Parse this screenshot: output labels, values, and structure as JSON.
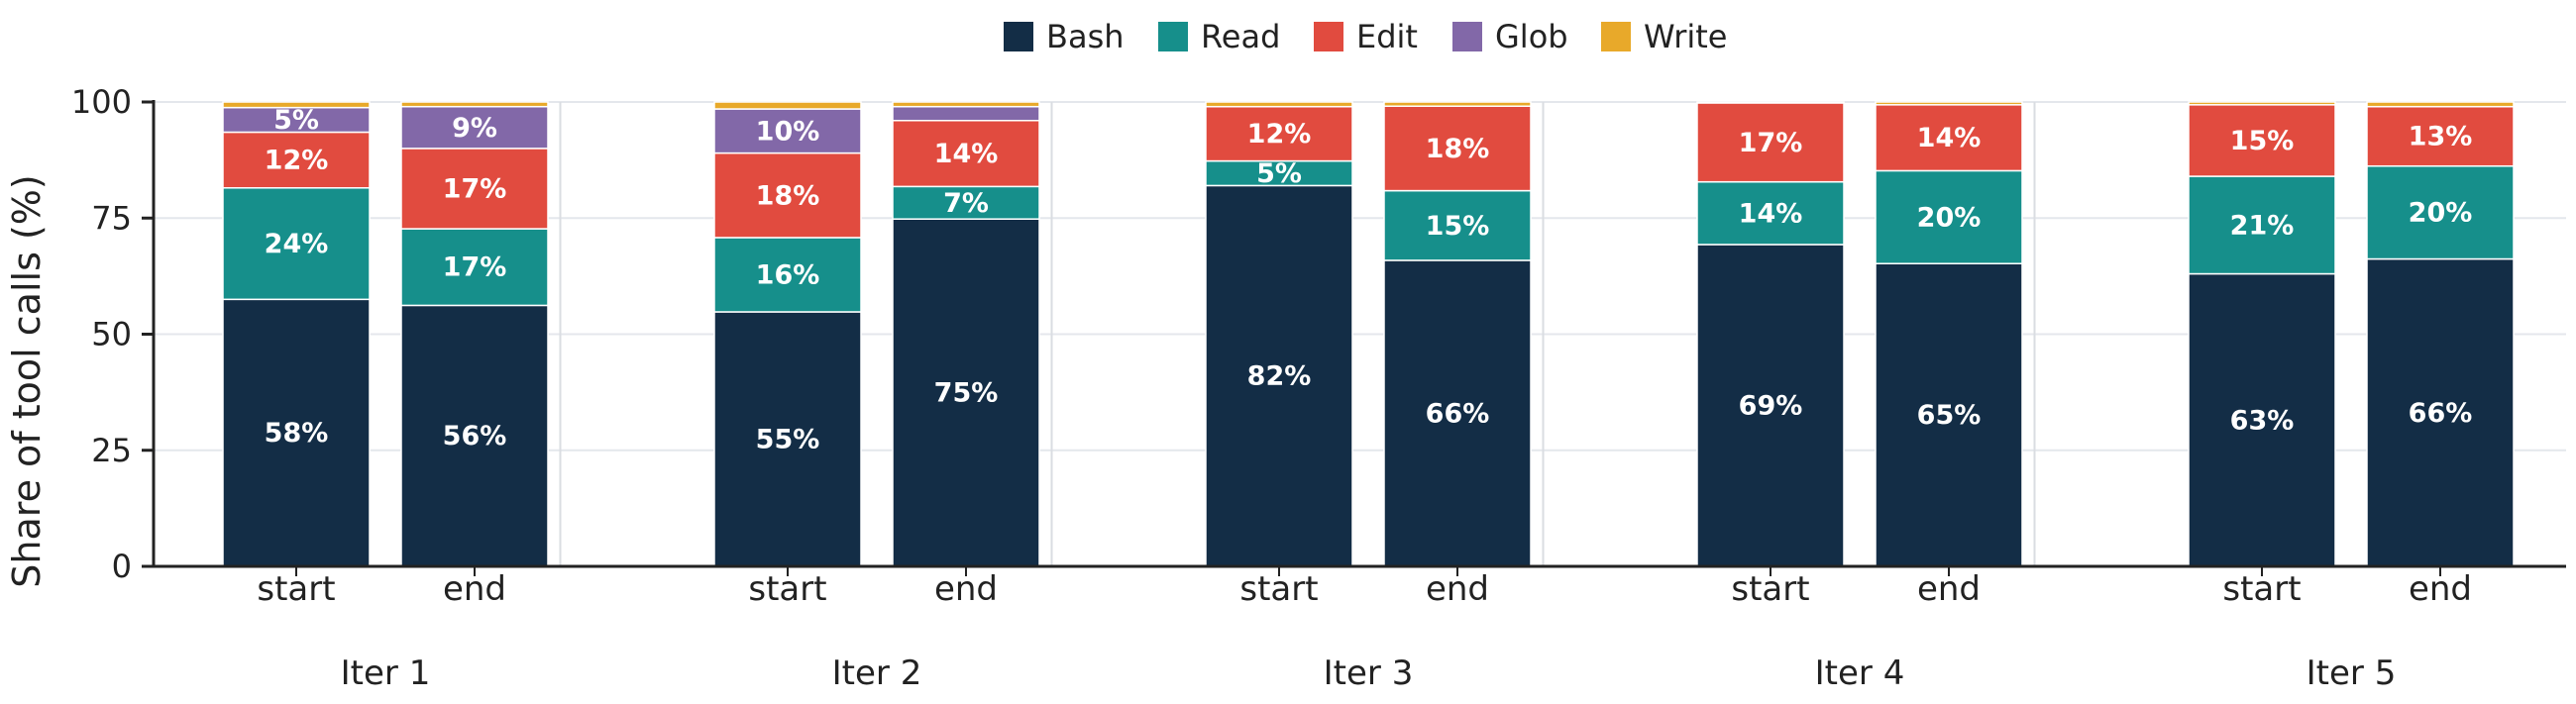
{
  "chart_data": {
    "type": "bar",
    "stacked": true,
    "title": "",
    "xlabel": "",
    "ylabel": "Share of tool calls (%)",
    "ylim": [
      0,
      100
    ],
    "yticks": [
      0,
      25,
      50,
      75,
      100
    ],
    "grid": "horizontal",
    "legend_position": "top-center",
    "groups": [
      "Iter 1",
      "Iter 2",
      "Iter 3",
      "Iter 4",
      "Iter 5"
    ],
    "phases": [
      "start",
      "end"
    ],
    "series": [
      {
        "name": "Bash",
        "color": "#132d46",
        "values": [
          57.5,
          56.2,
          54.8,
          74.8,
          82.0,
          65.9,
          69.3,
          65.2,
          63.0,
          66.2
        ],
        "labels": [
          "58%",
          "56%",
          "55%",
          "75%",
          "82%",
          "66%",
          "69%",
          "65%",
          "63%",
          "66%"
        ]
      },
      {
        "name": "Read",
        "color": "#168f8b",
        "values": [
          24.0,
          16.5,
          16.0,
          7.0,
          5.3,
          15.0,
          13.5,
          20.0,
          21.0,
          20.0
        ],
        "labels": [
          "24%",
          "17%",
          "16%",
          "7%",
          "5%",
          "15%",
          "14%",
          "20%",
          "21%",
          "20%"
        ]
      },
      {
        "name": "Edit",
        "color": "#e14b3f",
        "values": [
          12.0,
          17.3,
          18.2,
          14.2,
          11.7,
          18.2,
          17.0,
          14.2,
          15.4,
          12.8
        ],
        "labels": [
          "12%",
          "17%",
          "18%",
          "14%",
          "12%",
          "18%",
          "17%",
          "14%",
          "15%",
          "13%"
        ]
      },
      {
        "name": "Glob",
        "color": "#8268a8",
        "values": [
          5.3,
          9.0,
          9.5,
          3.0,
          0,
          0,
          0,
          0,
          0,
          0
        ],
        "labels": [
          "5%",
          "9%",
          "10%",
          "",
          "",
          "",
          "",
          "",
          "",
          ""
        ]
      },
      {
        "name": "Write",
        "color": "#e8a92a",
        "values": [
          1.2,
          1.0,
          1.5,
          1.0,
          1.0,
          0.9,
          0.2,
          0.6,
          0.6,
          1.0
        ],
        "labels": [
          "",
          "",
          "",
          "",
          "",
          "",
          "",
          "",
          "",
          ""
        ]
      }
    ]
  }
}
